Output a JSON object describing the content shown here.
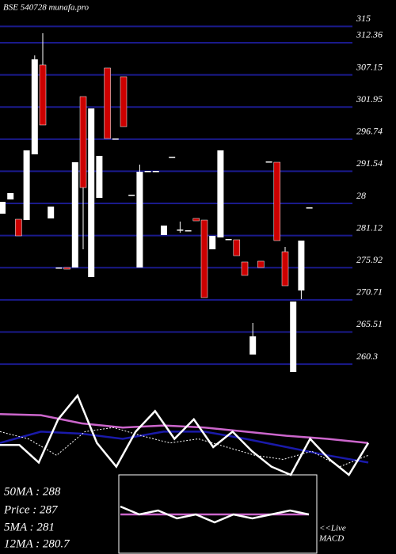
{
  "header": {
    "title": "BSE 540728 munafa.pro"
  },
  "chart_data": [
    {
      "type": "candlestick",
      "ylim": [
        259.03,
        319.28
      ],
      "grid": true,
      "grid_color": "#1a1a8c",
      "up_color": "#ffffff",
      "down_color": "#cc0000",
      "yticks": [
        315,
        312.36,
        307.15,
        301.95,
        296.74,
        291.54,
        {
          "value": 286.33,
          "label": "28"
        },
        281.12,
        275.92,
        270.71,
        265.51,
        260.3
      ],
      "candles": [
        [
          284.67,
          286.59,
          284.67,
          286.59
        ],
        [
          286.98,
          288.0,
          286.98,
          288.0
        ],
        [
          283.77,
          283.77,
          281.08,
          281.08
        ],
        [
          283.64,
          294.92,
          283.64,
          294.92
        ],
        [
          294.28,
          310.31,
          294.28,
          309.67
        ],
        [
          308.77,
          313.9,
          299.03,
          299.03
        ],
        [
          283.9,
          285.82,
          283.9,
          285.82
        ],
        [
          275.95,
          275.95,
          275.95,
          275.95
        ],
        [
          275.95,
          275.95,
          275.69,
          275.69
        ],
        [
          275.95,
          293.0,
          275.95,
          293.0
        ],
        [
          303.64,
          303.64,
          278.9,
          288.9
        ],
        [
          274.41,
          301.72,
          274.41,
          301.72
        ],
        [
          287.23,
          294.03,
          287.23,
          294.03
        ],
        [
          308.26,
          308.26,
          296.85,
          296.85
        ],
        [
          296.85,
          296.85,
          296.85,
          296.85
        ],
        [
          306.85,
          306.85,
          298.77,
          298.77
        ],
        [
          287.74,
          287.74,
          287.74,
          287.74
        ],
        [
          275.95,
          292.62,
          275.95,
          291.46
        ],
        [
          291.59,
          291.59,
          291.59,
          291.59
        ],
        [
          291.59,
          291.59,
          291.59,
          291.59
        ],
        [
          281.21,
          282.74,
          281.21,
          282.74
        ],
        [
          293.9,
          293.9,
          293.9,
          293.9
        ],
        [
          282.1,
          283.39,
          281.59,
          282.1
        ],
        [
          281.98,
          281.98,
          281.98,
          281.98
        ],
        [
          283.9,
          283.9,
          283.51,
          283.51
        ],
        [
          283.64,
          283.64,
          271.08,
          271.08
        ],
        [
          278.9,
          281.08,
          278.9,
          281.08
        ],
        [
          280.82,
          294.92,
          280.82,
          294.92
        ],
        [
          280.57,
          280.57,
          280.57,
          280.57
        ],
        [
          280.44,
          280.44,
          277.87,
          277.87
        ],
        [
          276.85,
          276.85,
          274.67,
          274.67
        ],
        [
          261.85,
          266.98,
          261.85,
          264.8
        ],
        [
          276.98,
          276.98,
          275.95,
          275.95
        ],
        [
          293.13,
          293.13,
          293.13,
          293.13
        ],
        [
          293.0,
          293.0,
          280.31,
          280.31
        ],
        [
          278.51,
          279.28,
          273.0,
          273.0
        ],
        [
          259.03,
          270.44,
          259.03,
          270.44
        ],
        [
          272.23,
          280.31,
          270.82,
          280.31
        ],
        [
          285.69,
          285.69,
          285.69,
          285.69
        ]
      ]
    },
    {
      "type": "line",
      "ylim": [
        0,
        100
      ],
      "series": [
        {
          "color": "#cc66cc",
          "values": [
            59,
            58,
            50,
            46,
            48,
            46,
            42,
            38,
            35,
            31
          ]
        },
        {
          "color": "#1a1aaa",
          "values": [
            31,
            42,
            40,
            35,
            42,
            42,
            35,
            27,
            19,
            12
          ]
        },
        {
          "color": "#ffffff",
          "values": [
            29,
            29,
            12,
            54,
            77,
            31,
            8,
            42,
            62,
            35,
            54,
            27,
            42,
            23,
            8,
            0,
            35,
            15,
            0,
            31
          ]
        },
        {
          "color": "#ffffff",
          "dashed": true,
          "values": [
            42,
            35,
            19,
            42,
            46,
            38,
            31,
            35,
            27,
            19,
            15,
            23,
            8,
            19
          ]
        }
      ]
    },
    {
      "type": "line",
      "ylim": [
        0,
        100
      ],
      "series": [
        {
          "color": "#cc66cc",
          "values": [
            50,
            50,
            50,
            50,
            50,
            50,
            50,
            50,
            50,
            50,
            50
          ]
        },
        {
          "color": "#ffffff",
          "values": [
            60,
            50,
            55,
            45,
            50,
            40,
            50,
            45,
            50,
            55,
            50
          ]
        }
      ]
    }
  ],
  "stats": [
    "50MA : 288",
    "Price : 287",
    "5MA : 281",
    "12MA : 280.7"
  ],
  "macd_label": [
    "<<Live",
    "MACD"
  ]
}
